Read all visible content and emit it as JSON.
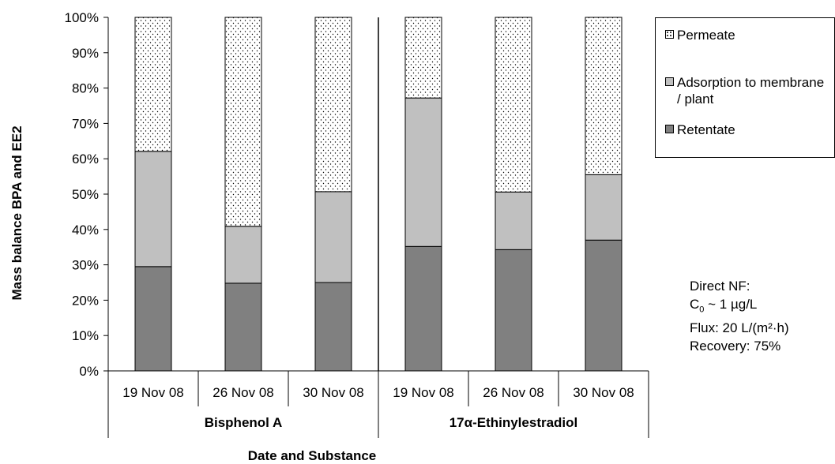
{
  "chart_data": {
    "type": "bar",
    "stacked": true,
    "categories": [
      "19 Nov 08",
      "26 Nov 08",
      "30 Nov 08",
      "19 Nov 08",
      "26 Nov 08",
      "30 Nov 08"
    ],
    "groups": [
      {
        "label": "Bisphenol A",
        "categories": [
          "19 Nov 08",
          "26 Nov 08",
          "30 Nov 08"
        ]
      },
      {
        "label": "17α-Ethinylestradiol",
        "categories": [
          "19 Nov 08",
          "26 Nov 08",
          "30 Nov 08"
        ]
      }
    ],
    "series": [
      {
        "name": "Retentate",
        "color": "#808080",
        "values": [
          29.5,
          24.8,
          25.0,
          35.2,
          34.3,
          37.0
        ]
      },
      {
        "name": "Adsorption to membrane / plant",
        "color": "#c0c0c0",
        "values": [
          32.6,
          16.1,
          25.7,
          42.0,
          16.3,
          18.5
        ]
      },
      {
        "name": "Permeate",
        "color": "#ffffff",
        "pattern": "dots",
        "values": [
          37.9,
          59.1,
          49.3,
          22.8,
          49.4,
          44.5
        ]
      }
    ],
    "ylabel": "Mass balance BPA and EE2",
    "xlabel": "Date and Substance",
    "ylim": [
      0,
      100
    ],
    "yticks": [
      "0%",
      "10%",
      "20%",
      "30%",
      "40%",
      "50%",
      "60%",
      "70%",
      "80%",
      "90%",
      "100%"
    ],
    "legend": {
      "position": "right",
      "entries": [
        "Permeate",
        "Adsorption to membrane / plant",
        "Retentate"
      ]
    },
    "annotation": {
      "line1": "Direct NF:",
      "line2_main": "C",
      "line2_sub": "0",
      "line2_rest": " ~ 1 µg/L",
      "line3": "Flux: 20 L/(m²·h)",
      "line4": "Recovery: 75%"
    },
    "grid": false
  }
}
